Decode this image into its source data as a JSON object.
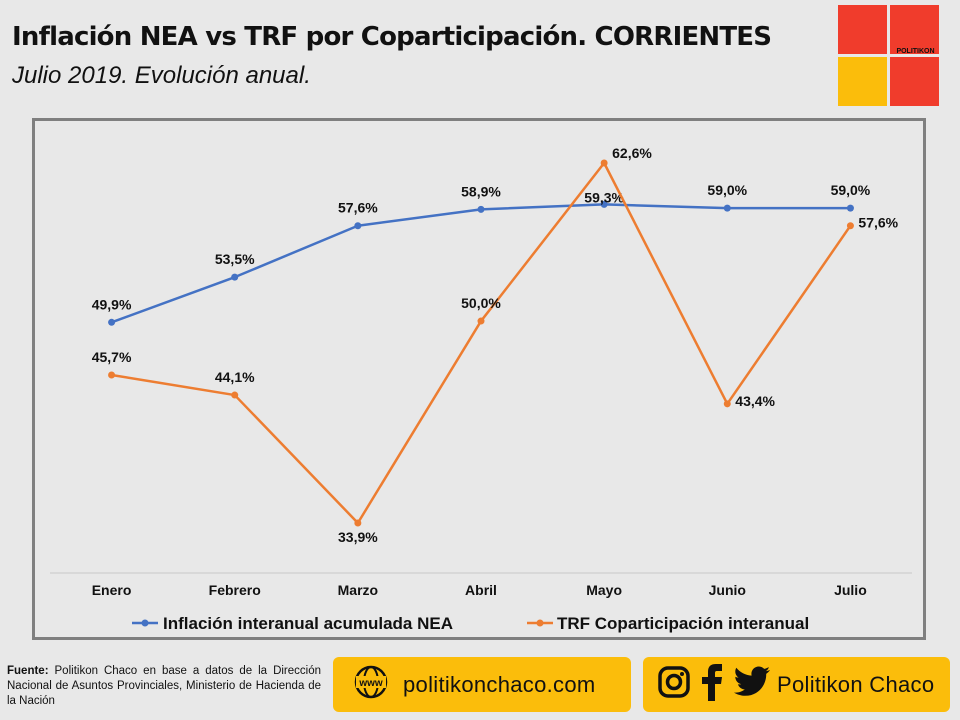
{
  "header": {
    "title": "Inflación NEA vs TRF por Coparticipación. CORRIENTES",
    "subtitle": "Julio 2019. Evolución anual.",
    "logo_text": "POLITIKON"
  },
  "colors": {
    "background": "#e8e8e8",
    "series_nea": "#4472c4",
    "series_trf": "#ed7d31",
    "logo_red": "#f03c2c",
    "logo_yellow": "#fbbd0b",
    "frame": "#7f7f7f"
  },
  "chart_data": {
    "type": "line",
    "categories": [
      "Enero",
      "Febrero",
      "Marzo",
      "Abril",
      "Mayo",
      "Junio",
      "Julio"
    ],
    "series": [
      {
        "name": "Inflación interanual acumulada NEA",
        "color": "#4472c4",
        "values": [
          49.9,
          53.5,
          57.6,
          58.9,
          59.3,
          59.0,
          59.0
        ],
        "labels": [
          "49,9%",
          "53,5%",
          "57,6%",
          "58,9%",
          "59,3%",
          "59,0%",
          "59,0%"
        ]
      },
      {
        "name": "TRF Coparticipación interanual",
        "color": "#ed7d31",
        "values": [
          45.7,
          44.1,
          33.9,
          50.0,
          62.6,
          43.4,
          57.6
        ],
        "labels": [
          "45,7%",
          "44,1%",
          "33,9%",
          "50,0%",
          "62,6%",
          "43,4%",
          "57,6%"
        ]
      }
    ],
    "grid": false,
    "legend_position": "bottom",
    "yaxis_visible": false
  },
  "footer": {
    "source_label": "Fuente:",
    "source_text": "Politikon Chaco en base a datos de la Dirección Nacional de Asuntos Provinciales, Ministerio de Hacienda de la Nación",
    "website": "politikonchaco.com",
    "www_label": "www",
    "social_name": "Politikon Chaco",
    "icons": [
      "globe-icon",
      "instagram-icon",
      "facebook-icon",
      "twitter-icon"
    ]
  }
}
